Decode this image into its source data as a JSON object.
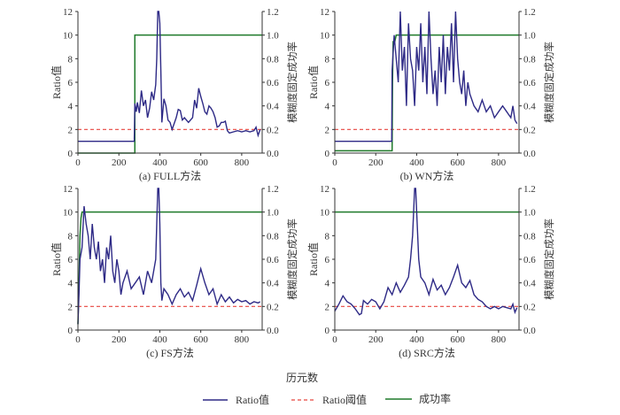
{
  "xlabel": "历元数",
  "legend": [
    {
      "label": "Ratio值",
      "color": "#2e2a86",
      "dash": false
    },
    {
      "label": "Ratio阈值",
      "color": "#e8463f",
      "dash": true
    },
    {
      "label": "成功率",
      "color": "#1f7a2a",
      "dash": false
    }
  ],
  "chart_data": [
    {
      "type": "line",
      "title": "(a) FULL方法",
      "ylabel": "Ratio值",
      "y2label": "模糊度固定成功率",
      "xlim": [
        0,
        900
      ],
      "ylim": [
        0,
        12
      ],
      "y2lim": [
        0,
        1.2
      ],
      "xticks": [
        0,
        200,
        400,
        600,
        800
      ],
      "yticks": [
        0,
        2,
        4,
        6,
        8,
        10,
        12
      ],
      "y2ticks": [
        "0.0",
        "0.2",
        "0.4",
        "0.6",
        "0.8",
        "1.0",
        "1.2"
      ],
      "threshold": 2,
      "ratio": {
        "x": [
          0,
          275,
          278,
          285,
          290,
          300,
          310,
          320,
          330,
          340,
          350,
          360,
          370,
          380,
          385,
          390,
          395,
          400,
          405,
          410,
          420,
          430,
          440,
          450,
          460,
          480,
          490,
          500,
          510,
          520,
          540,
          560,
          570,
          580,
          590,
          600,
          610,
          620,
          630,
          640,
          650,
          660,
          670,
          680,
          690,
          700,
          710,
          720,
          730,
          740,
          760,
          780,
          800,
          820,
          840,
          860,
          870,
          880,
          890
        ],
        "y": [
          1,
          1,
          4.2,
          3.5,
          4.3,
          3.4,
          5.3,
          4,
          4.5,
          3,
          3.8,
          5.2,
          4.5,
          5.8,
          8,
          12,
          12,
          11,
          7,
          2.6,
          4.6,
          4,
          2.8,
          2.6,
          2,
          3,
          3.7,
          3.6,
          2.8,
          3,
          2.6,
          3,
          4.5,
          3.8,
          5.5,
          4.8,
          4.2,
          3.5,
          3.3,
          4,
          3.8,
          3.5,
          3,
          2.2,
          2.3,
          2.6,
          2.6,
          2.7,
          1.9,
          1.7,
          1.8,
          1.9,
          1.8,
          1.9,
          1.8,
          1.9,
          2.2,
          1.5,
          2
        ]
      },
      "success": {
        "x": [
          0,
          278,
          278,
          900
        ],
        "y": [
          0,
          0,
          1,
          1
        ]
      }
    },
    {
      "type": "line",
      "title": "(b) WN方法",
      "ylabel": "Ratio值",
      "y2label": "模糊度固定成功率",
      "xlim": [
        0,
        900
      ],
      "ylim": [
        0,
        12
      ],
      "y2lim": [
        0,
        1.2
      ],
      "xticks": [
        0,
        200,
        400,
        600,
        800
      ],
      "yticks": [
        0,
        2,
        4,
        6,
        8,
        10,
        12
      ],
      "y2ticks": [
        "0.0",
        "0.2",
        "0.4",
        "0.6",
        "0.8",
        "1.0",
        "1.2"
      ],
      "threshold": 2,
      "ratio": {
        "x": [
          0,
          278,
          280,
          290,
          300,
          310,
          320,
          330,
          340,
          350,
          360,
          370,
          380,
          390,
          400,
          410,
          420,
          430,
          440,
          450,
          460,
          470,
          480,
          490,
          500,
          510,
          520,
          530,
          540,
          550,
          560,
          570,
          580,
          590,
          600,
          610,
          620,
          630,
          640,
          650,
          660,
          680,
          700,
          720,
          740,
          760,
          780,
          800,
          820,
          840,
          860,
          870,
          880,
          890
        ],
        "y": [
          1,
          1,
          7,
          10,
          8,
          6,
          12,
          7,
          9,
          4,
          11,
          8,
          7,
          4,
          9,
          7,
          11,
          6,
          9,
          5,
          12,
          8,
          5,
          7,
          4,
          9,
          6,
          10,
          5,
          9,
          7,
          11,
          6,
          12,
          8,
          6,
          5,
          7,
          4,
          6,
          5,
          4,
          3.5,
          4.5,
          3.5,
          4,
          3,
          3.5,
          4,
          3.5,
          3,
          4,
          2.8,
          2.5
        ]
      },
      "success": {
        "x": [
          0,
          280,
          282,
          285,
          290,
          300,
          900
        ],
        "y": [
          0.02,
          0.02,
          0.6,
          0.95,
          0.92,
          1,
          1
        ]
      }
    },
    {
      "type": "line",
      "title": "(c) FS方法",
      "ylabel": "Ratio值",
      "y2label": "模糊度固定成功率",
      "xlim": [
        0,
        900
      ],
      "ylim": [
        0,
        12
      ],
      "y2lim": [
        0,
        1.2
      ],
      "xticks": [
        0,
        200,
        400,
        600,
        800
      ],
      "yticks": [
        0,
        2,
        4,
        6,
        8,
        10,
        12
      ],
      "y2ticks": [
        "0.0",
        "0.2",
        "0.4",
        "0.6",
        "0.8",
        "1.0",
        "1.2"
      ],
      "threshold": 2,
      "ratio": {
        "x": [
          0,
          5,
          10,
          20,
          30,
          40,
          50,
          60,
          70,
          80,
          90,
          100,
          110,
          120,
          130,
          140,
          150,
          160,
          170,
          180,
          190,
          200,
          210,
          220,
          240,
          260,
          280,
          300,
          320,
          340,
          360,
          380,
          390,
          395,
          400,
          405,
          410,
          420,
          440,
          460,
          480,
          500,
          520,
          540,
          560,
          580,
          600,
          620,
          640,
          660,
          680,
          700,
          720,
          740,
          760,
          780,
          800,
          820,
          840,
          860,
          880,
          890
        ],
        "y": [
          0.5,
          3,
          6,
          7,
          10.5,
          9,
          8,
          6,
          9,
          7,
          6,
          7.5,
          5,
          6,
          4,
          7,
          6,
          8,
          5,
          4,
          6,
          5,
          3,
          4,
          5,
          3.5,
          4,
          4.5,
          3,
          5,
          4,
          6,
          12,
          12,
          9,
          4,
          2.5,
          3.5,
          3,
          2.2,
          3,
          3.5,
          2.8,
          3.2,
          2.5,
          3.8,
          5.2,
          4,
          3,
          3.5,
          2.2,
          3,
          2.4,
          2.8,
          2.3,
          2.6,
          2.4,
          2.5,
          2.2,
          2.4,
          2.3,
          2.4
        ]
      },
      "success": {
        "x": [
          0,
          5,
          10,
          15,
          20,
          900
        ],
        "y": [
          0.05,
          0.4,
          0.8,
          0.95,
          1,
          1
        ]
      }
    },
    {
      "type": "line",
      "title": "(d) SRC方法",
      "ylabel": "Ratio值",
      "y2label": "模糊度固定成功率",
      "xlim": [
        0,
        900
      ],
      "ylim": [
        0,
        12
      ],
      "y2lim": [
        0,
        1.2
      ],
      "xticks": [
        0,
        200,
        400,
        600,
        800
      ],
      "yticks": [
        0,
        2,
        4,
        6,
        8,
        10,
        12
      ],
      "y2ticks": [
        "0.0",
        "0.2",
        "0.4",
        "0.6",
        "0.8",
        "1.0",
        "1.2"
      ],
      "threshold": 2,
      "ratio": {
        "x": [
          0,
          20,
          40,
          60,
          80,
          100,
          120,
          130,
          140,
          160,
          180,
          200,
          220,
          240,
          260,
          280,
          300,
          320,
          340,
          360,
          370,
          380,
          390,
          395,
          400,
          410,
          420,
          440,
          460,
          480,
          500,
          520,
          540,
          560,
          580,
          600,
          620,
          640,
          660,
          680,
          700,
          720,
          740,
          760,
          780,
          800,
          820,
          840,
          860,
          870,
          880,
          890
        ],
        "y": [
          1.6,
          2.2,
          2.9,
          2.4,
          2.2,
          1.8,
          1.3,
          1.4,
          2.5,
          2.2,
          2.6,
          2.4,
          1.8,
          2.4,
          3.6,
          3,
          4,
          3.2,
          3.8,
          4.5,
          6,
          8,
          12,
          12,
          10,
          6,
          4.5,
          4,
          3,
          4.3,
          3.4,
          3.8,
          3,
          3.6,
          4.5,
          5.5,
          4,
          3.6,
          4.2,
          3,
          2.6,
          2.4,
          2,
          1.8,
          2,
          1.8,
          2,
          1.9,
          1.8,
          2.2,
          1.5,
          1.9
        ]
      },
      "success": {
        "x": [
          0,
          900
        ],
        "y": [
          1,
          1
        ]
      }
    }
  ]
}
